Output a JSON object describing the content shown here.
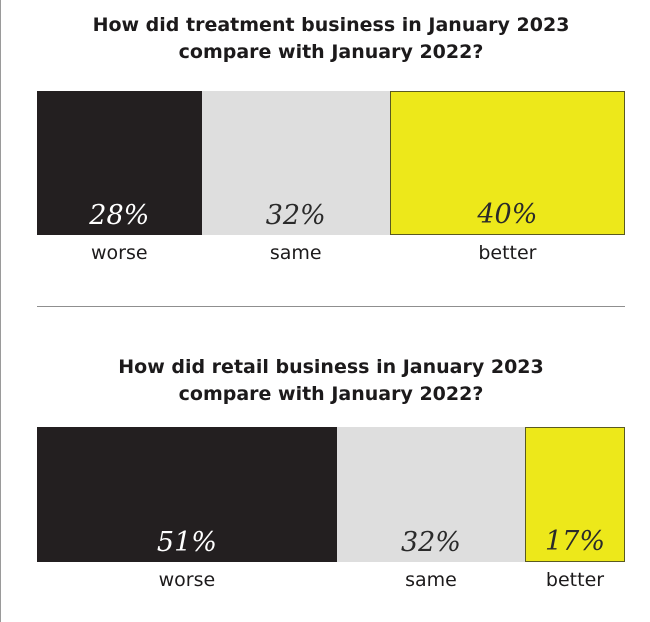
{
  "chart_data": [
    {
      "type": "bar",
      "title_lines": [
        "How did treatment business in January 2023",
        "compare with January 2022?"
      ],
      "categories": [
        "worse",
        "same",
        "better"
      ],
      "values": [
        28,
        32,
        40
      ],
      "value_labels": [
        "28%",
        "32%",
        "40%"
      ],
      "colors": [
        "#231f20",
        "#dedede",
        "#ede81a"
      ]
    },
    {
      "type": "bar",
      "title_lines": [
        "How did retail business in January 2023",
        "compare with January 2022?"
      ],
      "categories": [
        "worse",
        "same",
        "better"
      ],
      "values": [
        51,
        32,
        17
      ],
      "value_labels": [
        "51%",
        "32%",
        "17%"
      ],
      "colors": [
        "#231f20",
        "#dedede",
        "#ede81a"
      ]
    }
  ]
}
